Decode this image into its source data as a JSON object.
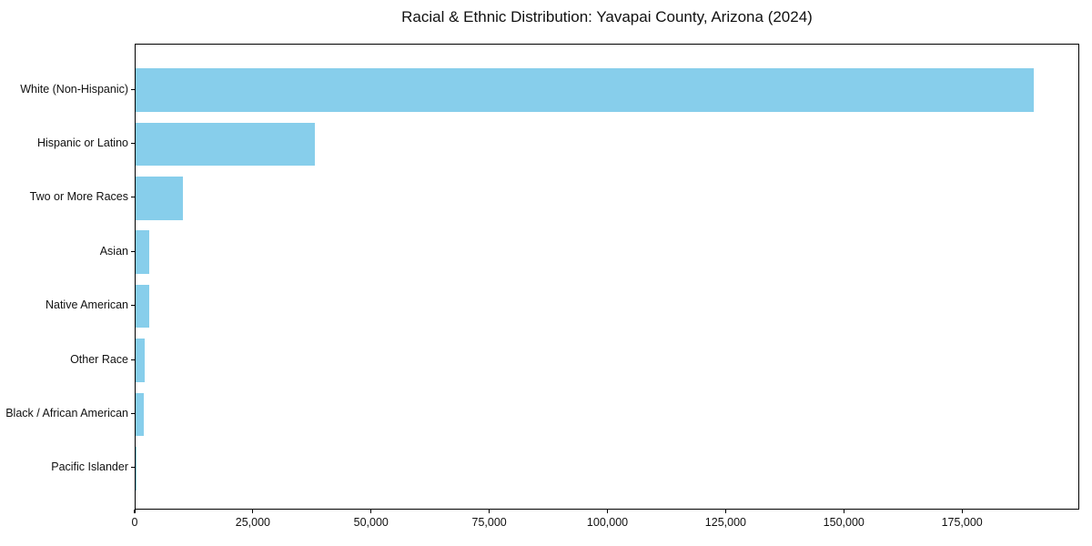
{
  "chart_data": {
    "type": "bar",
    "orientation": "horizontal",
    "title": "Racial & Ethnic Distribution: Yavapai County, Arizona (2024)",
    "categories": [
      "White (Non-Hispanic)",
      "Hispanic or Latino",
      "Two or More Races",
      "Asian",
      "Native American",
      "Other Race",
      "Black / African American",
      "Pacific Islander"
    ],
    "values": [
      190000,
      38000,
      10000,
      2900,
      2800,
      1900,
      1750,
      200
    ],
    "xlabel": "",
    "ylabel": "",
    "xlim": [
      0,
      199800
    ],
    "xticks": {
      "values": [
        0,
        25000,
        50000,
        75000,
        100000,
        125000,
        150000,
        175000
      ],
      "labels": [
        "0",
        "25,000",
        "50,000",
        "75,000",
        "100,000",
        "125,000",
        "150,000",
        "175,000"
      ]
    },
    "grid": false,
    "legend": "none",
    "bar_color": "#87CEEB",
    "axis_color": "#000000",
    "text_color": "#111111",
    "background_color": "#FFFFFF"
  }
}
